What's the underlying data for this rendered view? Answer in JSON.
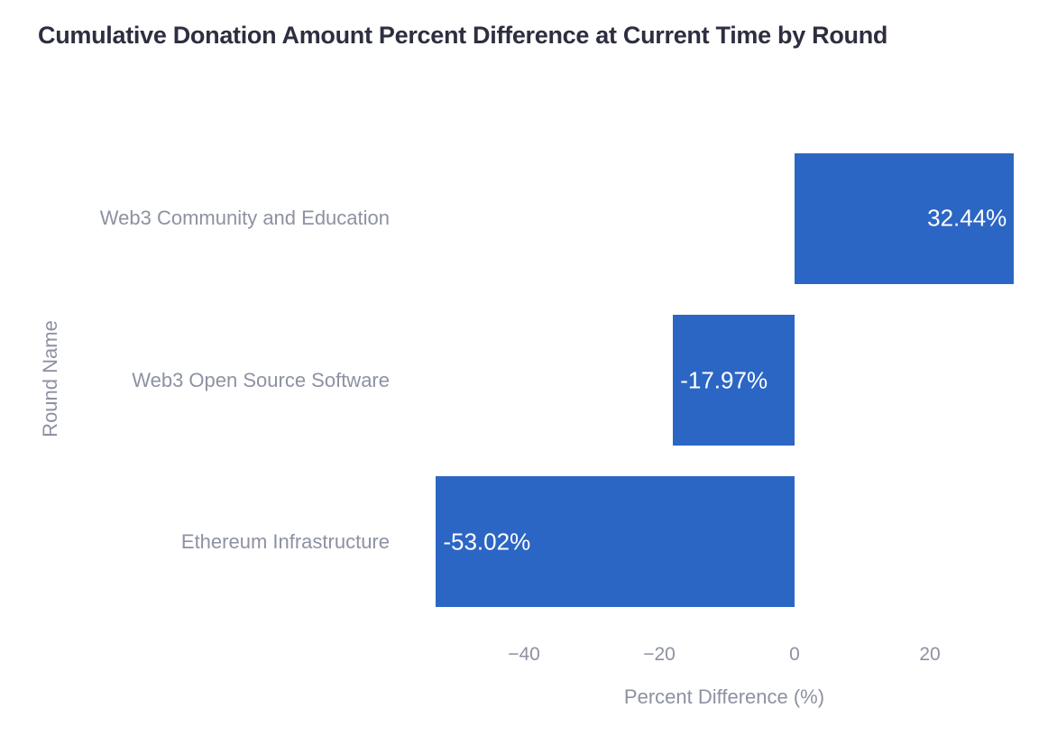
{
  "chart_data": {
    "type": "bar",
    "orientation": "horizontal",
    "title": "Cumulative Donation Amount Percent Difference at Current Time by Round",
    "xlabel": "Percent Difference (%)",
    "ylabel": "Round Name",
    "categories": [
      "Web3 Community and Education",
      "Web3 Open Source Software",
      "Ethereum Infrastructure"
    ],
    "values": [
      32.44,
      -17.97,
      -53.02
    ],
    "bar_labels": [
      "32.44%",
      "-17.97%",
      "-53.02%"
    ],
    "x_ticks": {
      "values": [
        -40,
        -20,
        0,
        20
      ],
      "labels": [
        "−40",
        "−20",
        "0",
        "20"
      ]
    },
    "xlim": [
      -56,
      33
    ],
    "grid": false,
    "legend": false,
    "colors": {
      "bar": "#2c66c5",
      "bar_label": "#ffffff",
      "title": "#2d2f40",
      "axis_text": "#8d91a2",
      "background": "#ffffff"
    }
  }
}
